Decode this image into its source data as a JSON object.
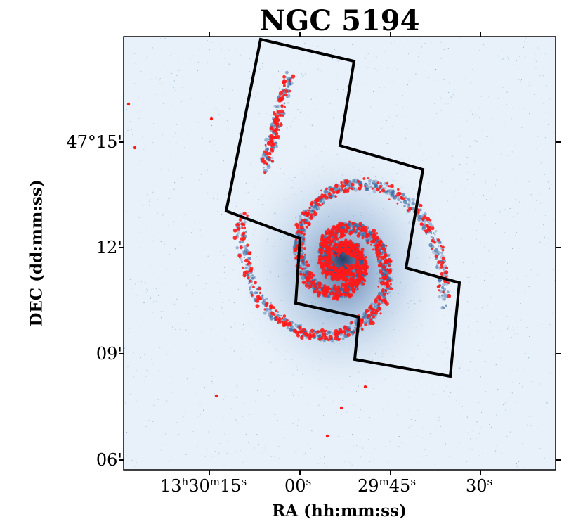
{
  "figure": {
    "title": "NGC 5194",
    "xlabel": "RA (hh:mm:ss)",
    "ylabel": "DEC (dd:mm:ss)"
  },
  "axes": {
    "x_ticks": [
      {
        "h": "13",
        "m": "30",
        "s": "15"
      },
      {
        "s": "00"
      },
      {
        "m": "29",
        "s": "45"
      },
      {
        "s": "30"
      }
    ],
    "y_ticks": [
      "47°15'",
      "12'",
      "09'",
      "06'"
    ]
  },
  "colors": {
    "image_background": "#e8f1fa",
    "image_dust": "#2f5f9a",
    "markers": "#ff1a1a",
    "footprint": "#000000"
  },
  "overlay": {
    "footprint_outline": "black polygon",
    "markers": "red points"
  }
}
